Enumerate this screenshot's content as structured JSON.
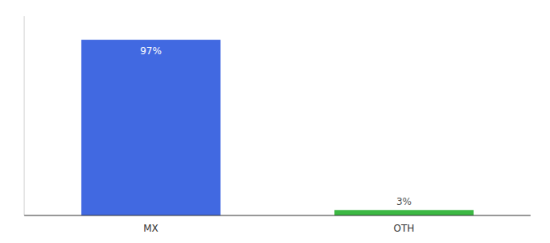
{
  "chart_data": {
    "type": "bar",
    "categories": [
      "MX",
      "OTH"
    ],
    "values": [
      97,
      3
    ],
    "value_labels": [
      "97%",
      "3%"
    ],
    "colors": [
      "#4169e1",
      "#3cb843"
    ],
    "ylim": [
      0,
      110
    ],
    "data_labels": true,
    "tick_labels": "x"
  }
}
